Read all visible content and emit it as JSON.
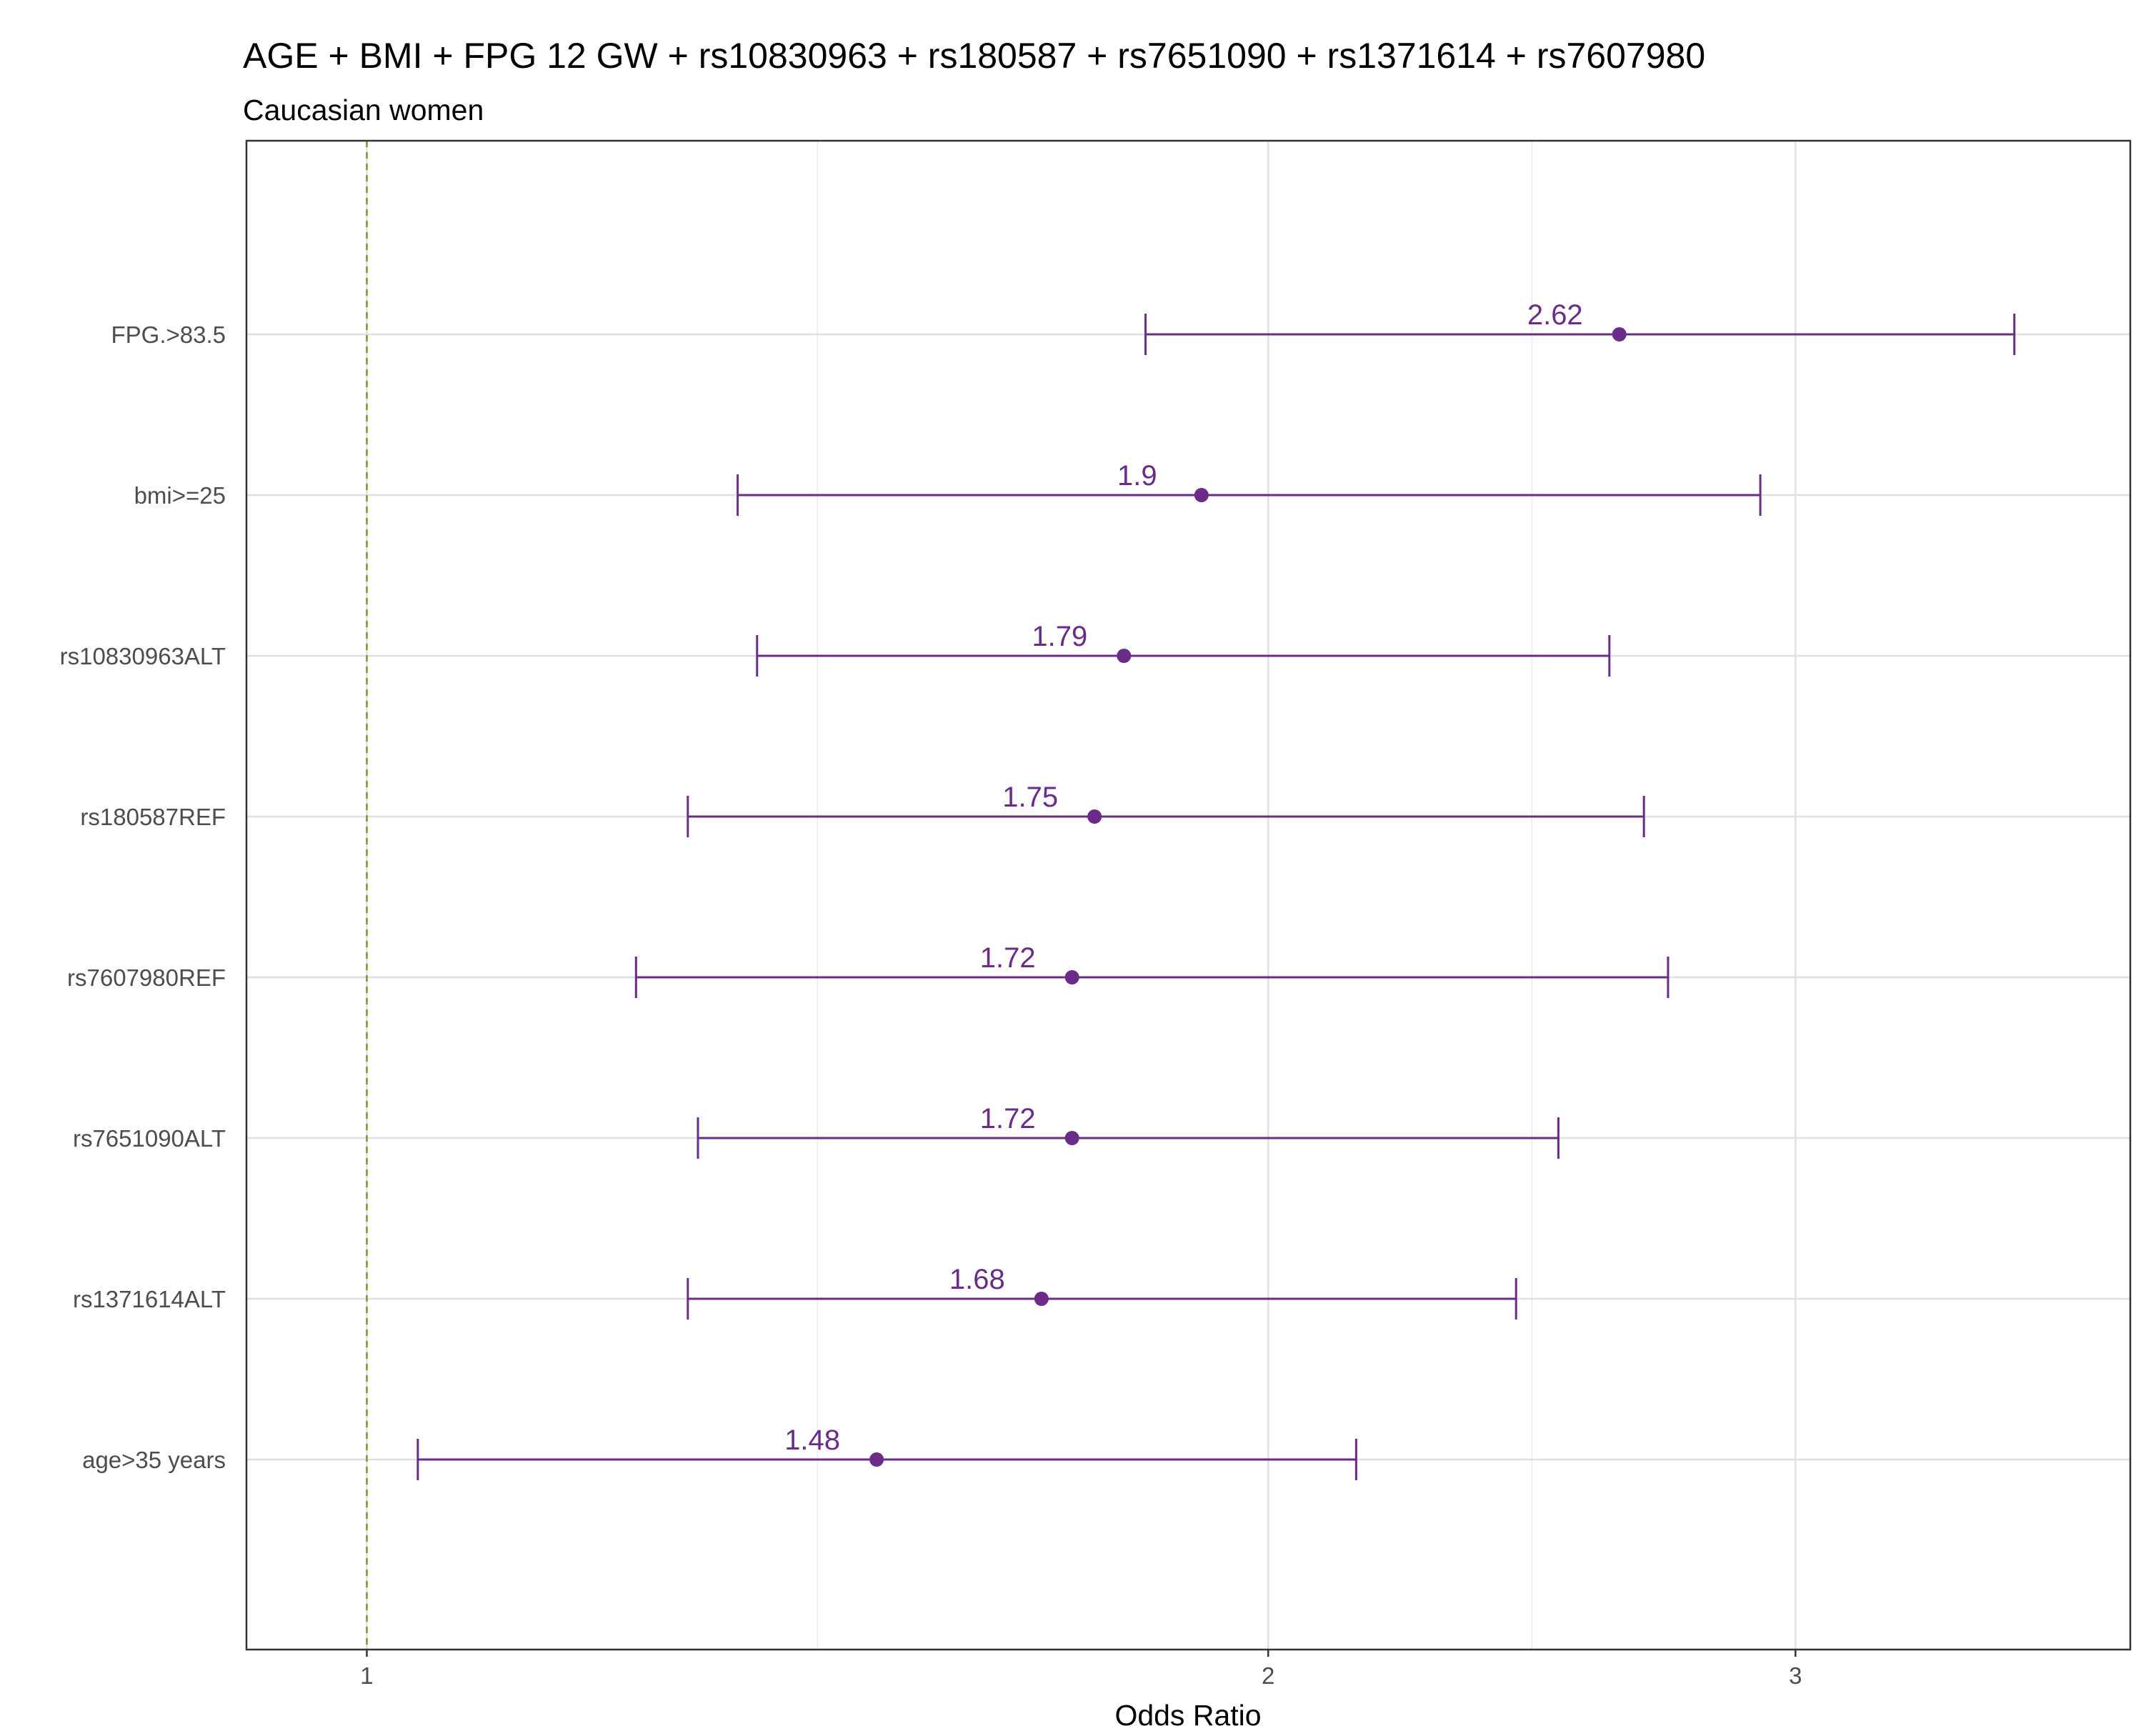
{
  "chart_data": {
    "type": "forest",
    "title": "AGE + BMI + FPG 12 GW + rs10830963 + rs180587 + rs7651090 + rs1371614 + rs7607980",
    "subtitle": "Caucasian women",
    "xlabel": "Odds Ratio",
    "ylabel": "",
    "x_scale": "log",
    "xlim": [
      0.9116,
      3.881
    ],
    "x_ticks": [
      1,
      2,
      3
    ],
    "x_minor_ticks": [
      1.4142,
      2.4495
    ],
    "reference_line": 1,
    "grid": true,
    "color": "#6a2c88",
    "ref_line_color": "#8b8b3a",
    "rows": [
      {
        "label": "FPG.>83.5",
        "or": 2.62,
        "or_label": "2.62",
        "lower": 1.82,
        "upper": 3.55
      },
      {
        "label": "bmi>=25",
        "or": 1.9,
        "or_label": "1.9",
        "lower": 1.33,
        "upper": 2.92
      },
      {
        "label": "rs10830963ALT",
        "or": 1.79,
        "or_label": "1.79",
        "lower": 1.35,
        "upper": 2.6
      },
      {
        "label": "rs180587REF",
        "or": 1.75,
        "or_label": "1.75",
        "lower": 1.28,
        "upper": 2.67
      },
      {
        "label": "rs7607980REF",
        "or": 1.72,
        "or_label": "1.72",
        "lower": 1.23,
        "upper": 2.72
      },
      {
        "label": "rs7651090ALT",
        "or": 1.72,
        "or_label": "1.72",
        "lower": 1.29,
        "upper": 2.5
      },
      {
        "label": "rs1371614ALT",
        "or": 1.68,
        "or_label": "1.68",
        "lower": 1.28,
        "upper": 2.42
      },
      {
        "label": "age>35 years",
        "or": 1.48,
        "or_label": "1.48",
        "lower": 1.04,
        "upper": 2.14
      }
    ]
  }
}
